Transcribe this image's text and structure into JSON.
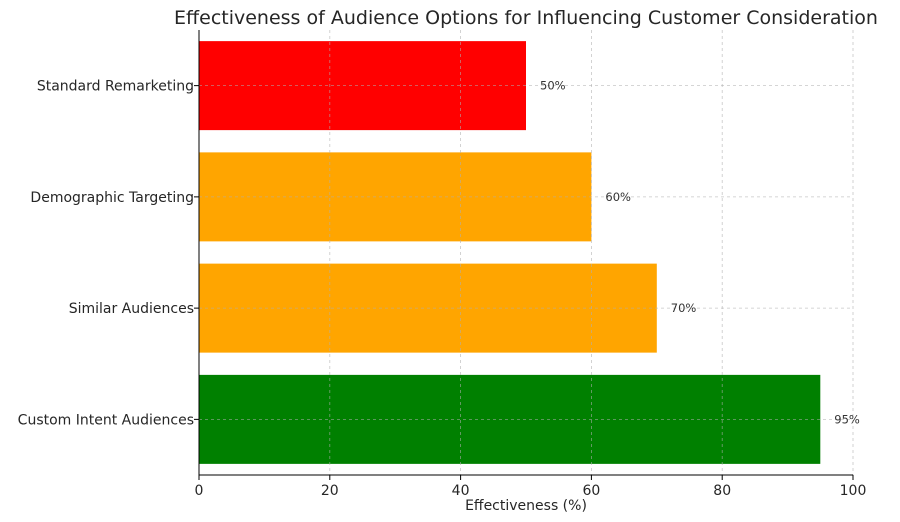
{
  "chart_data": {
    "type": "bar",
    "orientation": "horizontal",
    "title": "Effectiveness of Audience Options for Influencing Customer Consideration",
    "xlabel": "Effectiveness (%)",
    "ylabel": "",
    "xlim": [
      0,
      100
    ],
    "xticks": [
      "0",
      "20",
      "40",
      "60",
      "80",
      "100"
    ],
    "grid": true,
    "categories": [
      "Custom Intent Audiences",
      "Similar Audiences",
      "Demographic Targeting",
      "Standard Remarketing"
    ],
    "values": [
      95,
      70,
      60,
      50
    ],
    "value_labels": [
      "95%",
      "70%",
      "60%",
      "50%"
    ],
    "colors": [
      "#008000",
      "#FFA500",
      "#FFA500",
      "#FF0000"
    ]
  }
}
